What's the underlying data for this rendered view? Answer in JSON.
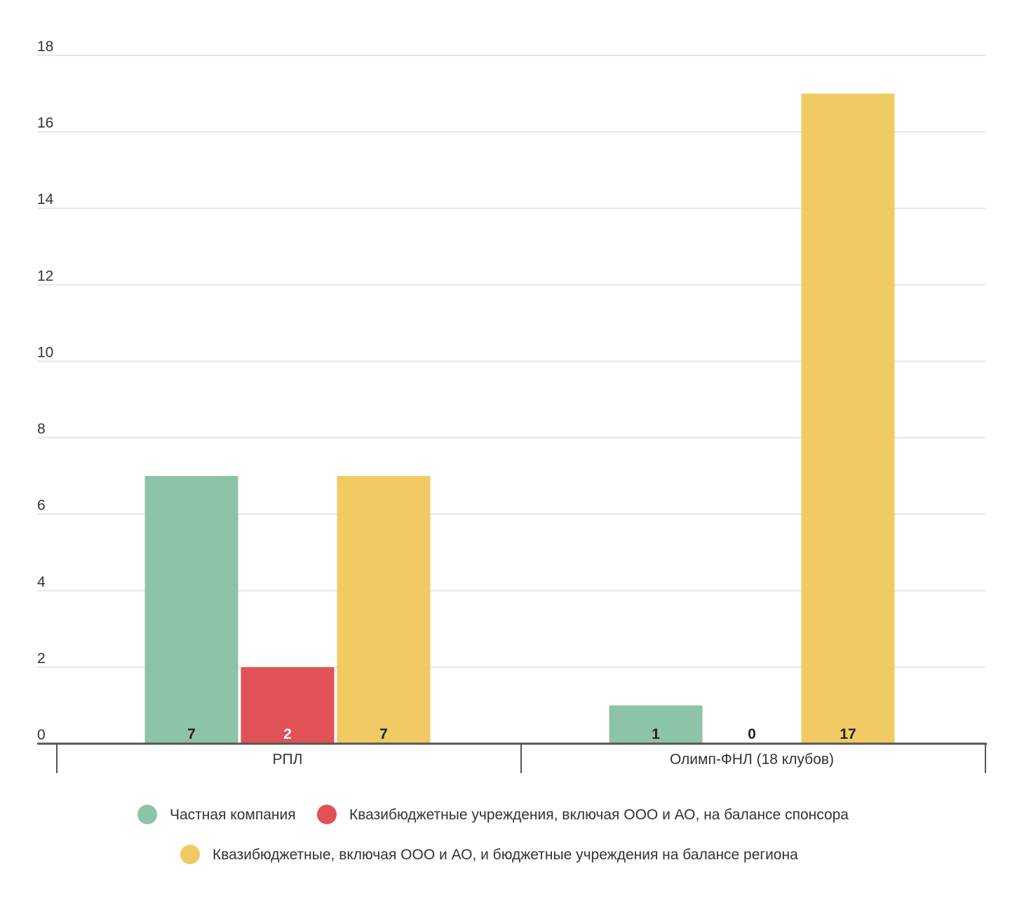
{
  "chart_data": {
    "type": "bar",
    "categories": [
      "РПЛ",
      "Олимп-ФНЛ (18 клубов)"
    ],
    "series": [
      {
        "name": "Частная компания",
        "values": [
          7,
          1
        ],
        "color": "#8dc3a7"
      },
      {
        "name": "Квазибюджетные учреждения, включая ООО и АО, на балансе спонсора",
        "values": [
          2,
          0
        ],
        "color": "#e05255"
      },
      {
        "name": "Квазибюджетные, включая ООО и АО, и бюджетные учреждения на балансе региона",
        "values": [
          7,
          17
        ],
        "color": "#f0cb63"
      }
    ],
    "y_ticks": [
      "0",
      "2",
      "4",
      "6",
      "8",
      "10",
      "12",
      "14",
      "16",
      "18"
    ],
    "ylim": [
      0,
      18
    ],
    "grid": true,
    "legend_position": "bottom",
    "data_label_colors": [
      "#222222",
      "#ffffff",
      "#222222"
    ],
    "axis_color": "#555555",
    "grid_color": "#e6e6e6"
  }
}
